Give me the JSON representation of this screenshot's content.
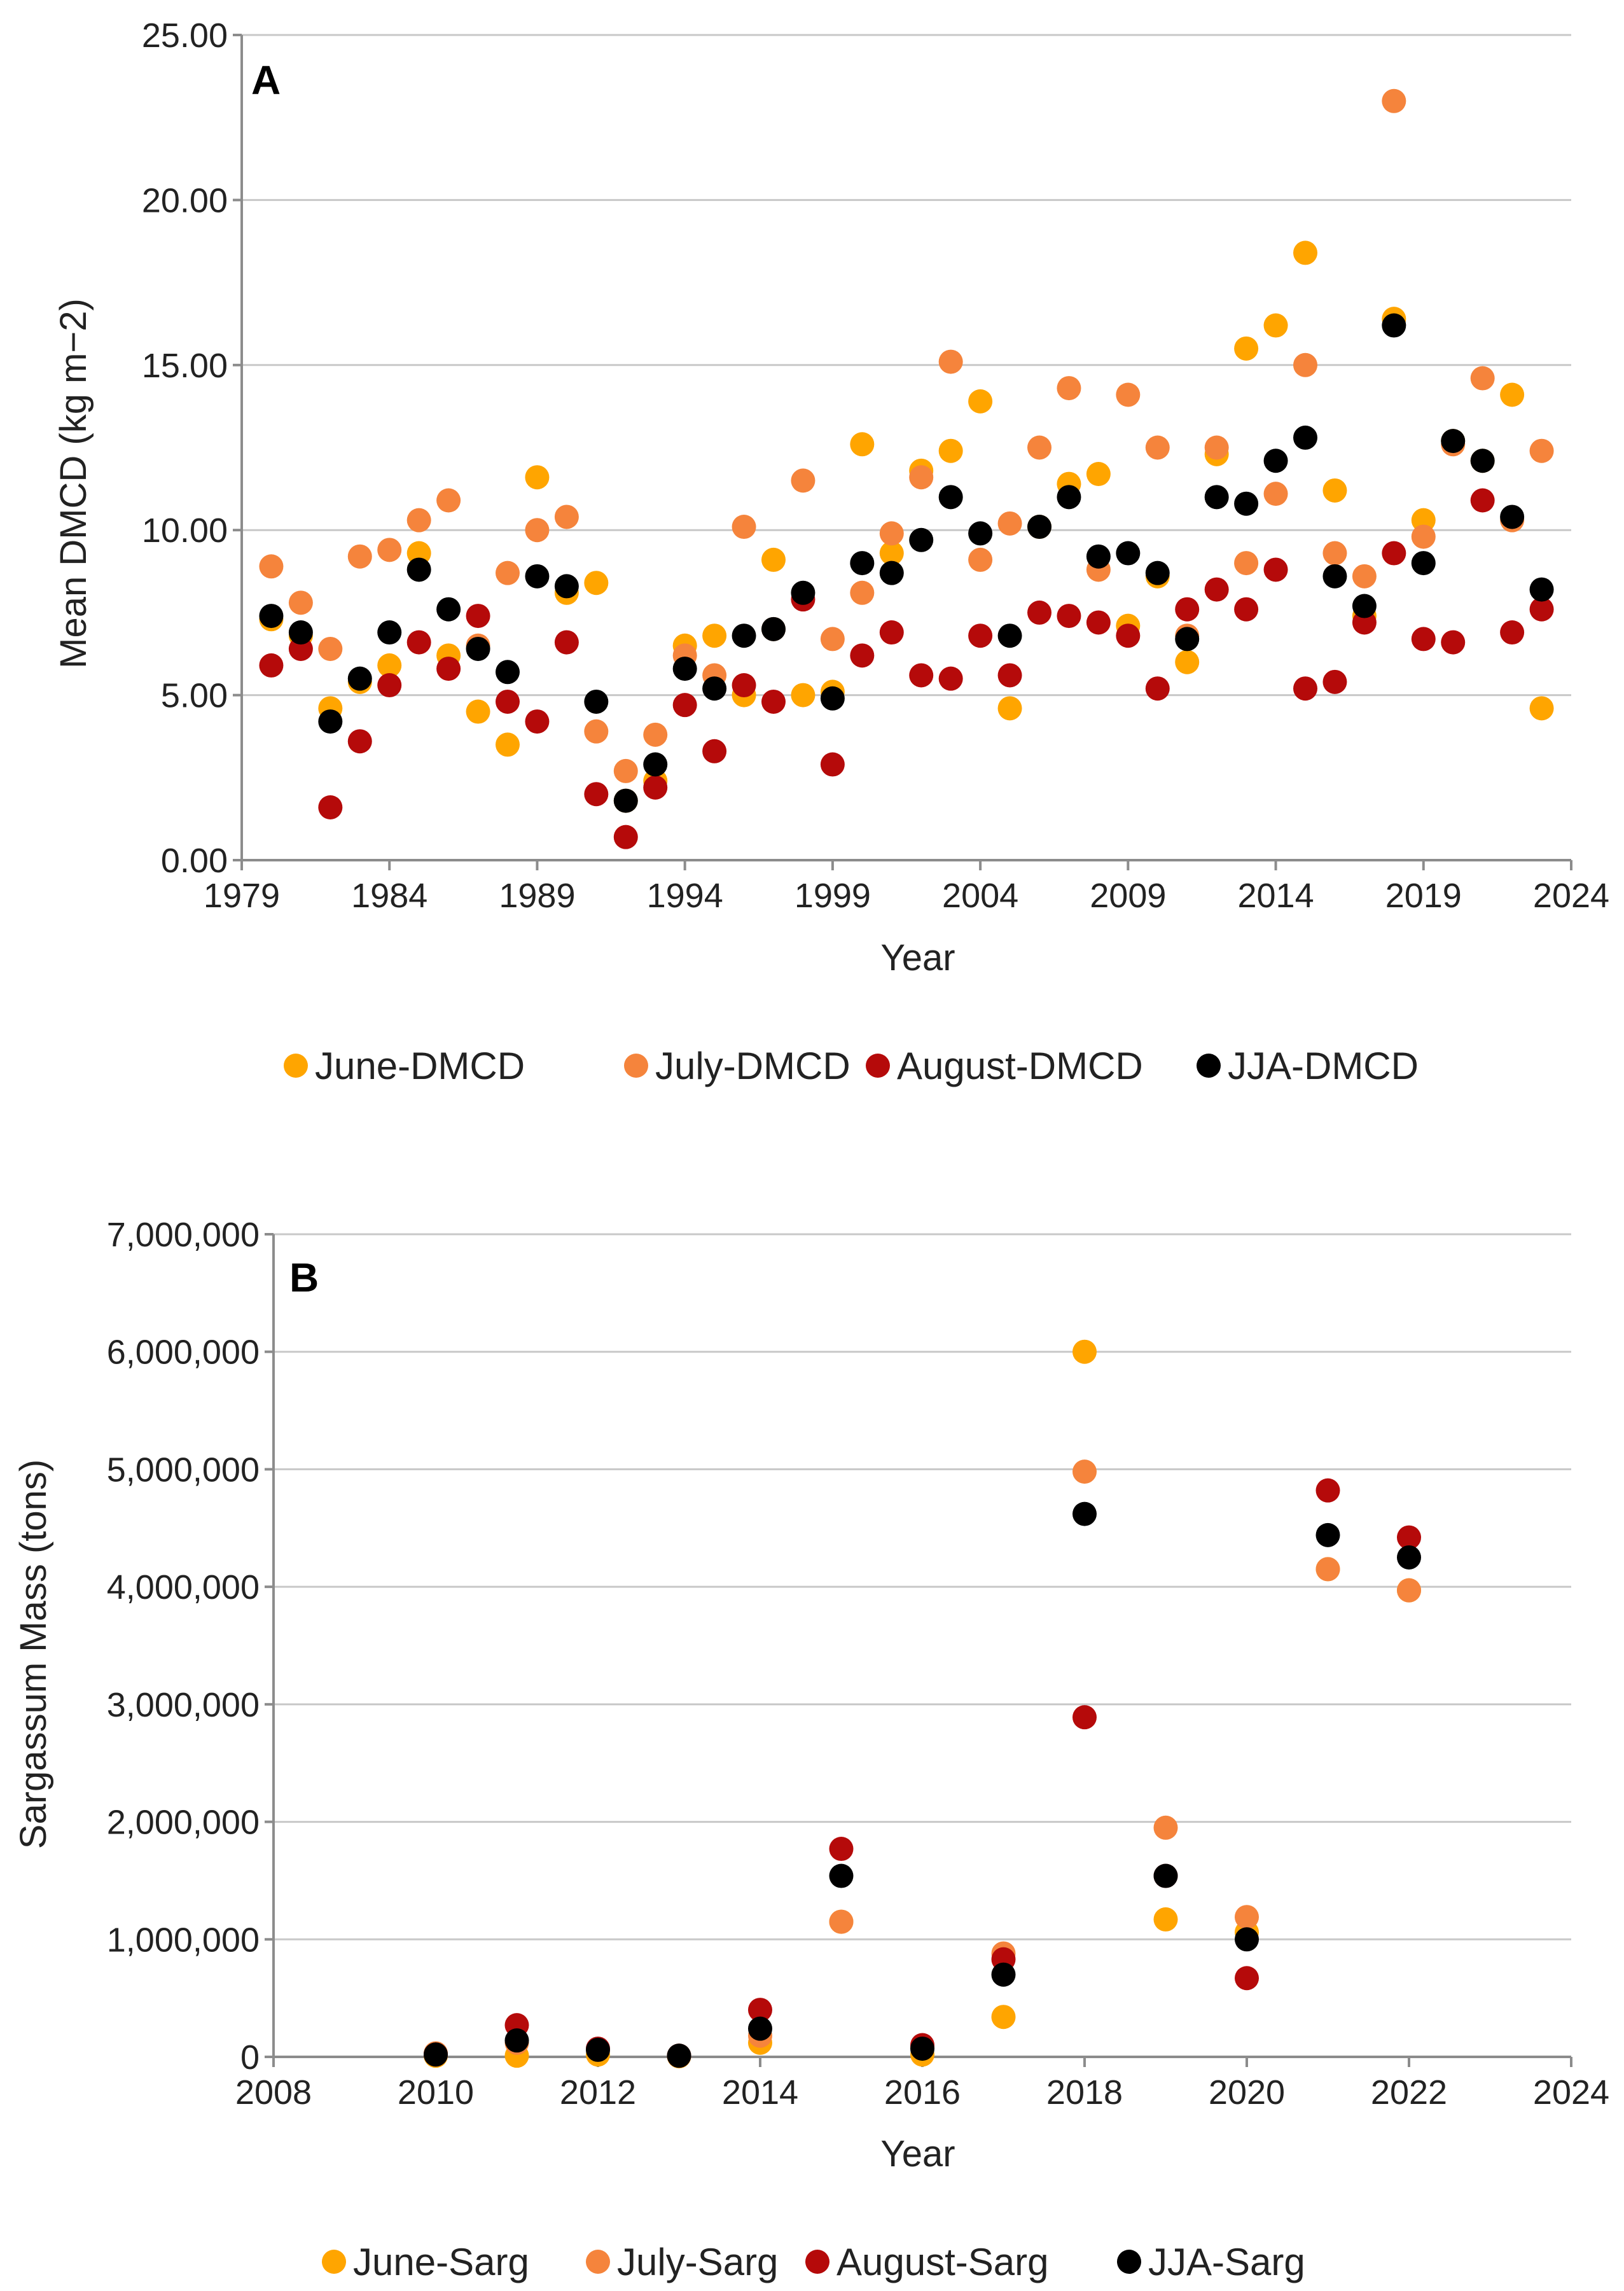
{
  "chart_data": [
    {
      "panel": "A",
      "type": "scatter",
      "title": "",
      "xlabel": "Year",
      "ylabel": "Mean DMCD (kg m−2)",
      "xlim": [
        1979,
        2024
      ],
      "ylim": [
        0,
        25
      ],
      "xticks": [
        1979,
        1984,
        1989,
        1994,
        1999,
        2004,
        2009,
        2014,
        2019,
        2024
      ],
      "yticks": [
        0,
        5,
        10,
        15,
        20,
        25
      ],
      "ytick_labels": [
        "0.00",
        "5.00",
        "10.00",
        "15.00",
        "20.00",
        "25.00"
      ],
      "grid": true,
      "legend_position": "bottom",
      "x": [
        1980,
        1981,
        1982,
        1983,
        1984,
        1985,
        1986,
        1987,
        1988,
        1989,
        1990,
        1991,
        1992,
        1993,
        1994,
        1995,
        1996,
        1997,
        1998,
        1999,
        2000,
        2001,
        2002,
        2003,
        2004,
        2005,
        2006,
        2007,
        2008,
        2009,
        2010,
        2011,
        2012,
        2013,
        2014,
        2015,
        2016,
        2017,
        2018,
        2019,
        2020,
        2021,
        2022,
        2023
      ],
      "series": [
        {
          "name": "June-DMCD",
          "color": "#ffa500",
          "values": [
            7.3,
            6.8,
            4.6,
            5.4,
            5.9,
            9.3,
            6.2,
            4.5,
            3.5,
            11.6,
            8.1,
            8.4,
            1.8,
            2.4,
            6.5,
            6.8,
            5.0,
            9.1,
            5.0,
            5.1,
            12.6,
            9.3,
            11.8,
            12.4,
            13.9,
            4.6,
            10.1,
            11.4,
            11.7,
            7.1,
            8.6,
            6.0,
            12.3,
            15.5,
            16.2,
            18.4,
            11.2,
            7.4,
            16.4,
            10.3,
            12.7,
            12.1,
            14.1,
            4.6
          ]
        },
        {
          "name": "July-DMCD",
          "color": "#f5843c",
          "values": [
            8.9,
            7.8,
            6.4,
            9.2,
            9.4,
            10.3,
            10.9,
            6.5,
            8.7,
            10.0,
            10.4,
            3.9,
            2.7,
            3.8,
            6.2,
            5.6,
            10.1,
            7.0,
            11.5,
            6.7,
            8.1,
            9.9,
            11.6,
            15.1,
            9.1,
            10.2,
            12.5,
            14.3,
            8.8,
            14.1,
            12.5,
            6.8,
            12.5,
            9.0,
            11.1,
            15.0,
            9.3,
            8.6,
            23.0,
            9.8,
            12.6,
            14.6,
            10.3,
            12.4
          ]
        },
        {
          "name": "August-DMCD",
          "color": "#b50a0a",
          "values": [
            5.9,
            6.4,
            1.6,
            3.6,
            5.3,
            6.6,
            5.8,
            7.4,
            4.8,
            4.2,
            6.6,
            2.0,
            0.7,
            2.2,
            4.7,
            3.3,
            5.3,
            4.8,
            7.9,
            2.9,
            6.2,
            6.9,
            5.6,
            5.5,
            6.8,
            5.6,
            7.5,
            7.4,
            7.2,
            6.8,
            5.2,
            7.6,
            8.2,
            7.6,
            8.8,
            5.2,
            5.4,
            7.2,
            9.3,
            6.7,
            6.6,
            10.9,
            6.9,
            7.6
          ]
        },
        {
          "name": "JJA-DMCD",
          "color": "#000000",
          "values": [
            7.4,
            6.9,
            4.2,
            5.5,
            6.9,
            8.8,
            7.6,
            6.4,
            5.7,
            8.6,
            8.3,
            4.8,
            1.8,
            2.9,
            5.8,
            5.2,
            6.8,
            7.0,
            8.1,
            4.9,
            9.0,
            8.7,
            9.7,
            11.0,
            9.9,
            6.8,
            10.1,
            11.0,
            9.2,
            9.3,
            8.7,
            6.7,
            11.0,
            10.8,
            12.1,
            12.8,
            8.6,
            7.7,
            16.2,
            9.0,
            12.7,
            12.1,
            10.4,
            8.2
          ]
        }
      ]
    },
    {
      "panel": "B",
      "type": "scatter",
      "title": "",
      "xlabel": "Year",
      "ylabel": "Sargassum Mass (tons)",
      "xlim": [
        2008,
        2024
      ],
      "ylim": [
        0,
        7000000
      ],
      "xticks": [
        2008,
        2010,
        2012,
        2014,
        2016,
        2018,
        2020,
        2022,
        2024
      ],
      "yticks": [
        0,
        1000000,
        2000000,
        3000000,
        4000000,
        5000000,
        6000000,
        7000000
      ],
      "ytick_labels": [
        "0",
        "1,000,000",
        "2,000,000",
        "3,000,000",
        "4,000,000",
        "5,000,000",
        "6,000,000",
        "7,000,000"
      ],
      "grid": true,
      "legend_position": "bottom",
      "x": [
        2010,
        2011,
        2012,
        2013,
        2014,
        2015,
        2016,
        2017,
        2018,
        2019,
        2020,
        2021,
        2022
      ],
      "series": [
        {
          "name": "June-Sarg",
          "color": "#ffa500",
          "values": [
            10000,
            10000,
            20000,
            5000,
            120000,
            1150000,
            20000,
            340000,
            6000000,
            1170000,
            1060000,
            4150000,
            3970000
          ]
        },
        {
          "name": "July-Sarg",
          "color": "#f5843c",
          "values": [
            30000,
            120000,
            60000,
            10000,
            180000,
            1150000,
            80000,
            880000,
            4980000,
            1950000,
            1190000,
            4150000,
            3970000
          ]
        },
        {
          "name": "August-Sarg",
          "color": "#b50a0a",
          "values": [
            20000,
            270000,
            70000,
            10000,
            400000,
            1770000,
            100000,
            830000,
            2890000,
            1540000,
            670000,
            4820000,
            4420000
          ]
        },
        {
          "name": "JJA-Sarg",
          "color": "#000000",
          "values": [
            20000,
            140000,
            60000,
            10000,
            240000,
            1540000,
            70000,
            700000,
            4620000,
            1540000,
            1000000,
            4440000,
            4250000
          ]
        }
      ]
    }
  ]
}
